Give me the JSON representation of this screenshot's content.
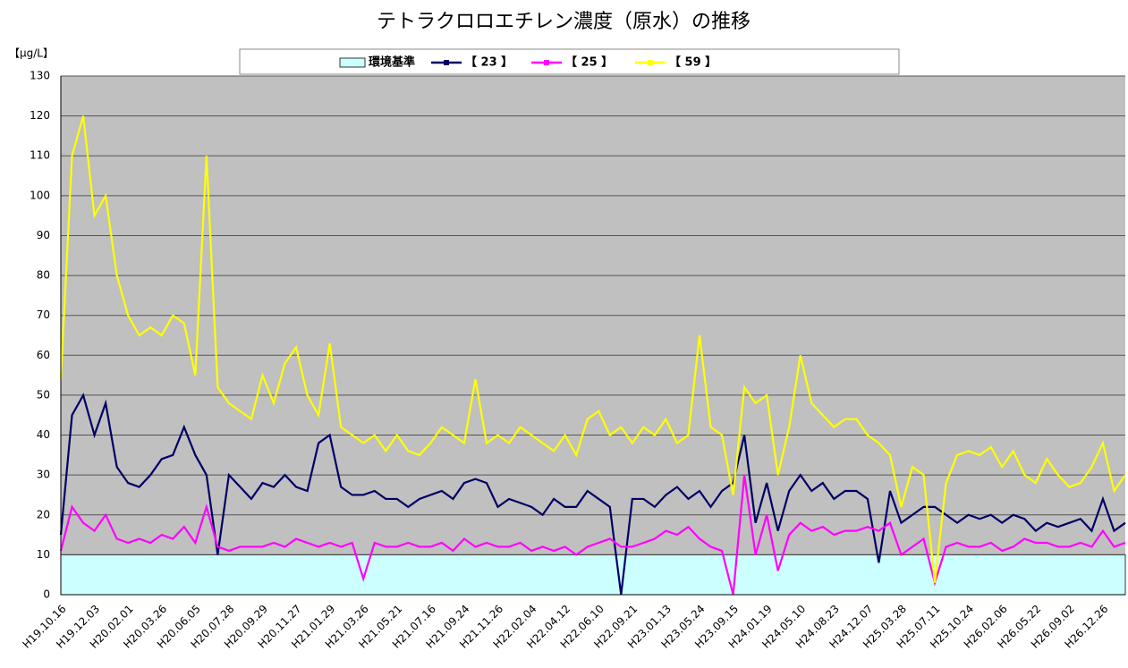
{
  "chart_data": {
    "type": "line",
    "title": "テトラクロロエチレン濃度（原水）の推移",
    "y_label": "【μg/L】",
    "categories": [
      "H19.10.16",
      null,
      null,
      "H19.12.03",
      null,
      null,
      "H20.02.01",
      null,
      null,
      "H20.03.26",
      null,
      null,
      "H20.06.05",
      null,
      null,
      "H20.07.28",
      null,
      null,
      "H20.09.29",
      null,
      null,
      "H20.11.27",
      null,
      null,
      "H21.01.29",
      null,
      null,
      "H21.03.26",
      null,
      null,
      "H21.05.21",
      null,
      null,
      "H21.07.16",
      null,
      null,
      "H21.09.24",
      null,
      null,
      "H21.11.26",
      null,
      null,
      "H22.02.04",
      null,
      null,
      "H22.04.12",
      null,
      null,
      "H22.06.10",
      null,
      null,
      "H22.09.21",
      null,
      null,
      "H23.01.13",
      null,
      null,
      "H23.05.24",
      null,
      null,
      "H23.09.15",
      null,
      null,
      "H24.01.19",
      null,
      null,
      "H24.05.10",
      null,
      null,
      "H24.08.23",
      null,
      null,
      "H24.12.07",
      null,
      null,
      "H25.03.28",
      null,
      null,
      "H25.07.11",
      null,
      null,
      "H25.10.24",
      null,
      null,
      "H26.02.06",
      null,
      null,
      "H26.05.22",
      null,
      null,
      "H26.09.02",
      null,
      null,
      "H26.12.26",
      null,
      null
    ],
    "series": [
      {
        "name": "環境基準",
        "color": "#ccffff",
        "kind": "area",
        "values": [
          10,
          10,
          10,
          10,
          10,
          10,
          10,
          10,
          10,
          10,
          10,
          10,
          10,
          10,
          10,
          10,
          10,
          10,
          10,
          10,
          10,
          10,
          10,
          10,
          10,
          10,
          10,
          10,
          10,
          10,
          10,
          10,
          10,
          10,
          10,
          10,
          10,
          10,
          10,
          10,
          10,
          10,
          10,
          10,
          10,
          10,
          10,
          10,
          10,
          10,
          10,
          10,
          10,
          10,
          10,
          10,
          10,
          10,
          10,
          10,
          10,
          10,
          10,
          10,
          10,
          10,
          10,
          10,
          10,
          10,
          10,
          10,
          10,
          10,
          10,
          10,
          10,
          10,
          10,
          10,
          10,
          10,
          10,
          10,
          10,
          10,
          10,
          10,
          10,
          10,
          10,
          10,
          10,
          10,
          10,
          10
        ]
      },
      {
        "name": "【 23 】",
        "color": "#000066",
        "values": [
          15,
          45,
          50,
          40,
          48,
          32,
          28,
          27,
          30,
          34,
          35,
          42,
          35,
          30,
          10,
          30,
          27,
          24,
          28,
          27,
          30,
          27,
          26,
          38,
          40,
          27,
          25,
          25,
          26,
          24,
          24,
          22,
          24,
          25,
          26,
          24,
          28,
          29,
          28,
          22,
          24,
          23,
          22,
          20,
          24,
          22,
          22,
          26,
          24,
          22,
          0,
          24,
          24,
          22,
          25,
          27,
          24,
          26,
          22,
          26,
          28,
          40,
          18,
          28,
          16,
          26,
          30,
          26,
          28,
          24,
          26,
          26,
          24,
          8,
          26,
          18,
          20,
          22,
          22,
          20,
          18,
          20,
          19,
          20,
          18,
          20,
          19,
          16,
          18,
          17,
          18,
          19,
          16,
          24,
          16,
          18
        ]
      },
      {
        "name": "【 25 】",
        "color": "#ff00ff",
        "values": [
          11,
          22,
          18,
          16,
          20,
          14,
          13,
          14,
          13,
          15,
          14,
          17,
          13,
          22,
          12,
          11,
          12,
          12,
          12,
          13,
          12,
          14,
          13,
          12,
          13,
          12,
          13,
          4,
          13,
          12,
          12,
          13,
          12,
          12,
          13,
          11,
          14,
          12,
          13,
          12,
          12,
          13,
          11,
          12,
          11,
          12,
          10,
          12,
          13,
          14,
          12,
          12,
          13,
          14,
          16,
          15,
          17,
          14,
          12,
          11,
          0,
          30,
          10,
          20,
          6,
          15,
          18,
          16,
          17,
          15,
          16,
          16,
          17,
          16,
          18,
          10,
          12,
          14,
          3,
          12,
          13,
          12,
          12,
          13,
          11,
          12,
          14,
          13,
          13,
          12,
          12,
          13,
          12,
          16,
          12,
          13
        ]
      },
      {
        "name": "【 59 】",
        "color": "#ffff00",
        "values": [
          54,
          110,
          120,
          95,
          100,
          80,
          70,
          65,
          67,
          65,
          70,
          68,
          55,
          110,
          52,
          48,
          46,
          44,
          55,
          48,
          58,
          62,
          50,
          45,
          63,
          42,
          40,
          38,
          40,
          36,
          40,
          36,
          35,
          38,
          42,
          40,
          38,
          54,
          38,
          40,
          38,
          42,
          40,
          38,
          36,
          40,
          35,
          44,
          46,
          40,
          42,
          38,
          42,
          40,
          44,
          38,
          40,
          65,
          42,
          40,
          25,
          52,
          48,
          50,
          30,
          42,
          60,
          48,
          45,
          42,
          44,
          44,
          40,
          38,
          35,
          22,
          32,
          30,
          3,
          28,
          35,
          36,
          35,
          37,
          32,
          36,
          30,
          28,
          34,
          30,
          27,
          28,
          32,
          38,
          26,
          30
        ]
      }
    ],
    "ylim": [
      0,
      130
    ],
    "yticks": [
      0,
      10,
      20,
      30,
      40,
      50,
      60,
      70,
      80,
      90,
      100,
      110,
      120,
      130
    ],
    "grid": true,
    "legend": "top"
  }
}
